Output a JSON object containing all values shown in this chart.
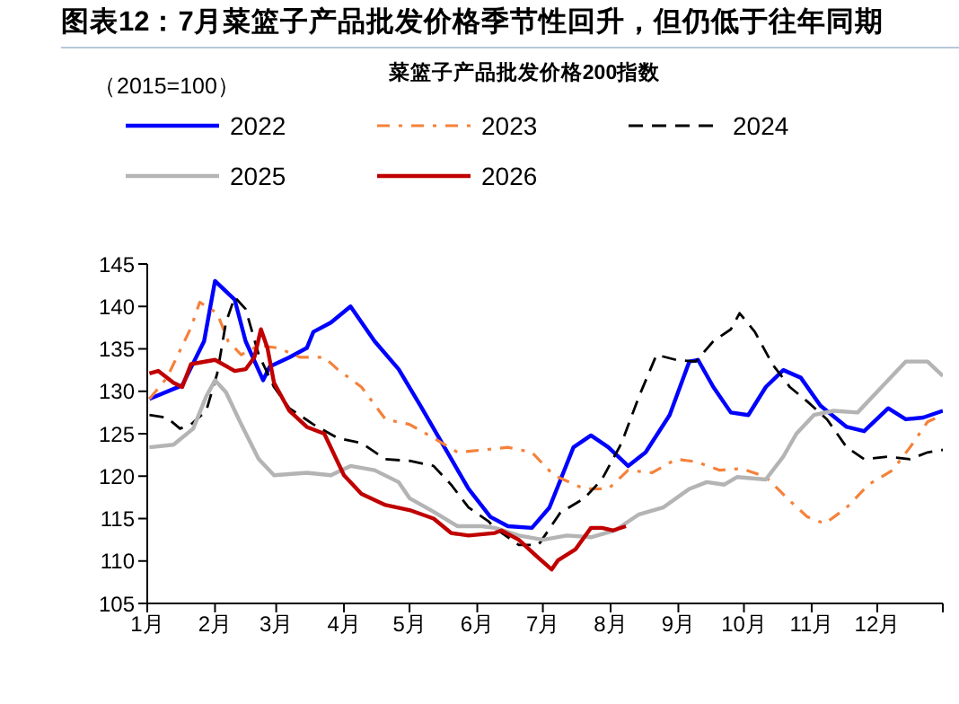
{
  "chart_data": {
    "type": "line",
    "title": "图表12：7月菜篮子产品批发价格季节性回升，但仍低于往年同期",
    "subtitle": "菜篮子产品批发价格200指数",
    "annotations": [
      "（2015=100）"
    ],
    "xlim": [
      "--01-01",
      "--12-31"
    ],
    "xticks": [
      {
        "value": "--01-01",
        "label": "1月"
      },
      {
        "value": "--02-01",
        "label": "2月"
      },
      {
        "value": "--03-01",
        "label": "3月"
      },
      {
        "value": "--04-01",
        "label": "4月"
      },
      {
        "value": "--05-01",
        "label": "5月"
      },
      {
        "value": "--06-01",
        "label": "6月"
      },
      {
        "value": "--07-01",
        "label": "7月"
      },
      {
        "value": "--08-01",
        "label": "8月"
      },
      {
        "value": "--09-01",
        "label": "9月"
      },
      {
        "value": "--10-01",
        "label": "10月"
      },
      {
        "value": "--11-01",
        "label": "11月"
      },
      {
        "value": "--12-01",
        "label": "12月"
      },
      {
        "value": "--12-31",
        "label": null
      }
    ],
    "ylim": [
      105,
      145
    ],
    "yticks": [
      105,
      110,
      115,
      120,
      125,
      130,
      135,
      140,
      145
    ],
    "grid": false,
    "legend": "top",
    "marker": "none",
    "series": [
      {
        "name": "2022",
        "color": "#0000ff",
        "line_style": "solid",
        "x": [
          "--01-02",
          "--01-17",
          "--01-27",
          "--02-01",
          "--02-10",
          "--02-15",
          "--02-23",
          "--02-26",
          "--03-07",
          "--03-15",
          "--03-18",
          "--03-26",
          "--04-04",
          "--04-15",
          "--04-26",
          "--05-06",
          "--05-17",
          "--05-28",
          "--06-07",
          "--06-15",
          "--06-26",
          "--07-04",
          "--07-15",
          "--07-23",
          "--07-31",
          "--08-09",
          "--08-17",
          "--08-28",
          "--09-06",
          "--09-10",
          "--09-17",
          "--09-25",
          "--10-03",
          "--10-11",
          "--10-19",
          "--10-27",
          "--11-05",
          "--11-17",
          "--11-25",
          "--12-06",
          "--12-14",
          "--12-22",
          "--12-31"
        ],
        "values": [
          129.1,
          130.7,
          135.9,
          143,
          140.8,
          135.9,
          131.3,
          132.9,
          134,
          135.1,
          137,
          138.1,
          140,
          135.9,
          132.6,
          128.3,
          123.4,
          118.5,
          115.2,
          114.1,
          113.9,
          116.3,
          123.4,
          124.8,
          123.4,
          121.2,
          122.8,
          127.2,
          133.5,
          133.7,
          130.5,
          127.5,
          127.2,
          130.5,
          132.5,
          131.6,
          128.3,
          125.8,
          125.3,
          128,
          126.7,
          126.9,
          127.7
        ]
      },
      {
        "name": "2023",
        "color": "#f5813a",
        "line_style": "dashdot",
        "x": [
          "--01-02",
          "--01-10",
          "--01-21",
          "--01-25",
          "--02-02",
          "--02-07",
          "--02-13",
          "--02-21",
          "--03-02",
          "--03-12",
          "--03-23",
          "--03-29",
          "--04-09",
          "--04-20",
          "--05-01",
          "--05-12",
          "--05-23",
          "--06-04",
          "--06-15",
          "--06-26",
          "--07-06",
          "--07-20",
          "--07-31",
          "--08-09",
          "--08-20",
          "--08-31",
          "--09-09",
          "--09-20",
          "--09-30",
          "--10-11",
          "--10-22",
          "--10-30",
          "--11-07",
          "--11-17",
          "--11-27",
          "--12-08",
          "--12-16",
          "--12-24",
          "--12-31"
        ],
        "values": [
          129.1,
          131.6,
          137.5,
          140.5,
          139.2,
          135.9,
          134.3,
          135.4,
          135.1,
          134,
          134,
          132.6,
          130.5,
          126.7,
          126.1,
          124.5,
          122.8,
          123.1,
          123.4,
          122.8,
          120.1,
          118.5,
          118.5,
          120.7,
          120.4,
          122,
          121.7,
          120.7,
          120.9,
          119.9,
          117.1,
          115.2,
          114.4,
          116.3,
          119,
          120.7,
          123.4,
          126.4,
          127.2
        ]
      },
      {
        "name": "2024",
        "color": "#000000",
        "line_style": "dashed",
        "x": [
          "--01-02",
          "--01-10",
          "--01-16",
          "--01-21",
          "--01-28",
          "--02-02",
          "--02-06",
          "--02-10",
          "--02-15",
          "--02-21",
          "--02-28",
          "--03-07",
          "--03-18",
          "--03-29",
          "--04-09",
          "--04-20",
          "--05-01",
          "--05-12",
          "--05-20",
          "--05-28",
          "--06-06",
          "--06-09",
          "--06-20",
          "--06-29",
          "--07-09",
          "--07-20",
          "--07-28",
          "--08-06",
          "--08-14",
          "--08-22",
          "--08-31",
          "--09-09",
          "--09-17",
          "--09-25",
          "--09-29",
          "--10-06",
          "--10-14",
          "--10-22",
          "--10-30",
          "--11-08",
          "--11-17",
          "--11-25",
          "--12-06",
          "--12-16",
          "--12-24",
          "--12-31"
        ],
        "values": [
          127.2,
          126.9,
          125.6,
          126.1,
          127.7,
          132.1,
          138.1,
          141.1,
          139.7,
          134.3,
          130.5,
          128,
          126.1,
          124.5,
          123.9,
          122,
          121.8,
          121.2,
          119,
          116.3,
          114.7,
          113.9,
          111.9,
          111.9,
          115.7,
          117.4,
          119.6,
          123.9,
          129.4,
          134.3,
          133.7,
          133.5,
          135.9,
          137.3,
          139.2,
          137,
          133.2,
          130.5,
          128.8,
          126.7,
          123.4,
          122,
          122.3,
          122,
          122.8,
          123.1
        ]
      },
      {
        "name": "2025",
        "color": "#b4b4b4",
        "line_style": "solid",
        "x": [
          "--01-02",
          "--01-13",
          "--01-22",
          "--01-28",
          "--02-01",
          "--02-06",
          "--02-13",
          "--02-21",
          "--02-28",
          "--03-15",
          "--03-26",
          "--04-04",
          "--04-15",
          "--04-26",
          "--05-01",
          "--05-12",
          "--05-23",
          "--06-03",
          "--06-09",
          "--06-20",
          "--07-01",
          "--07-12",
          "--07-23",
          "--08-03",
          "--08-14",
          "--08-25",
          "--09-06",
          "--09-14",
          "--09-22",
          "--09-28",
          "--10-11",
          "--10-19",
          "--10-25",
          "--11-02",
          "--11-11",
          "--11-22",
          "--12-03",
          "--12-14",
          "--12-24",
          "--12-31"
        ],
        "values": [
          123.4,
          123.7,
          125.6,
          129.4,
          131.3,
          129.9,
          126.1,
          122,
          120.1,
          120.4,
          120.1,
          121.2,
          120.7,
          119.3,
          117.4,
          115.8,
          114.1,
          114.1,
          113.9,
          113,
          112.5,
          113,
          112.8,
          113.6,
          115.5,
          116.3,
          118.5,
          119.3,
          119,
          119.9,
          119.6,
          122.3,
          125,
          127.2,
          127.7,
          127.5,
          130.5,
          133.5,
          133.5,
          131.8
        ]
      },
      {
        "name": "2026",
        "color": "#c00000",
        "line_style": "solid",
        "x": [
          "--01-02",
          "--01-06",
          "--01-13",
          "--01-17",
          "--01-21",
          "--02-01",
          "--02-10",
          "--02-15",
          "--02-19",
          "--02-22",
          "--02-25",
          "--02-28",
          "--03-07",
          "--03-15",
          "--03-23",
          "--04-01",
          "--04-09",
          "--04-20",
          "--05-01",
          "--05-12",
          "--05-20",
          "--05-28",
          "--06-09",
          "--06-12",
          "--06-20",
          "--06-28",
          "--07-05",
          "--07-08",
          "--07-16",
          "--07-23",
          "--07-28",
          "--08-02",
          "--08-08"
        ],
        "values": [
          132.1,
          132.4,
          131,
          130.5,
          133.2,
          133.7,
          132.4,
          132.6,
          134,
          137.3,
          135.1,
          131,
          127.7,
          125.8,
          125,
          120.1,
          117.9,
          116.6,
          116,
          115,
          113.3,
          113,
          113.3,
          113.6,
          112.5,
          110.6,
          109,
          110.1,
          111.4,
          113.9,
          113.9,
          113.6,
          114.1
        ]
      }
    ]
  }
}
